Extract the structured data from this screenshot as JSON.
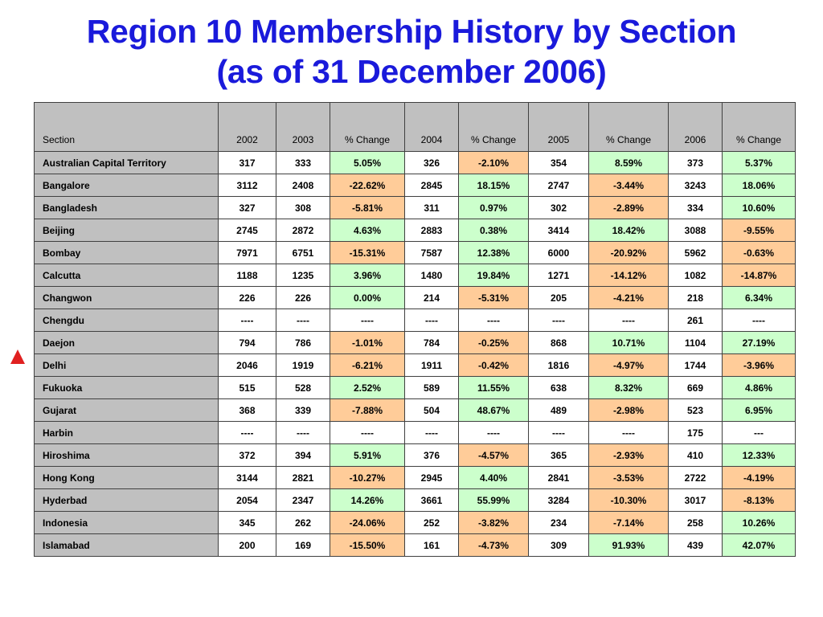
{
  "title": {
    "line1": "Region 10 Membership History by Section",
    "line2": "(as of 31 December 2006)"
  },
  "marker_icon": "triangle-up-icon",
  "colors": {
    "title": "#1a1adb",
    "header_bg": "#c0c0c0",
    "increase_bg": "#ccffcc",
    "decrease_bg": "#ffcc99",
    "marker": "#e02020"
  },
  "table": {
    "headers": [
      "Section",
      "2002",
      "2003",
      "% Change",
      "2004",
      "% Change",
      "2005",
      "% Change",
      "2006",
      "% Change"
    ],
    "rows": [
      [
        "Australian Capital Territory",
        "317",
        "333",
        "5.05%",
        "326",
        "-2.10%",
        "354",
        "8.59%",
        "373",
        "5.37%"
      ],
      [
        "Bangalore",
        "3112",
        "2408",
        "-22.62%",
        "2845",
        "18.15%",
        "2747",
        "-3.44%",
        "3243",
        "18.06%"
      ],
      [
        "Bangladesh",
        "327",
        "308",
        "-5.81%",
        "311",
        "0.97%",
        "302",
        "-2.89%",
        "334",
        "10.60%"
      ],
      [
        "Beijing",
        "2745",
        "2872",
        "4.63%",
        "2883",
        "0.38%",
        "3414",
        "18.42%",
        "3088",
        "-9.55%"
      ],
      [
        "Bombay",
        "7971",
        "6751",
        "-15.31%",
        "7587",
        "12.38%",
        "6000",
        "-20.92%",
        "5962",
        "-0.63%"
      ],
      [
        "Calcutta",
        "1188",
        "1235",
        "3.96%",
        "1480",
        "19.84%",
        "1271",
        "-14.12%",
        "1082",
        "-14.87%"
      ],
      [
        "Changwon",
        "226",
        "226",
        "0.00%",
        "214",
        "-5.31%",
        "205",
        "-4.21%",
        "218",
        "6.34%"
      ],
      [
        "Chengdu",
        "----",
        "----",
        "----",
        "----",
        "----",
        "----",
        "----",
        "261",
        "----"
      ],
      [
        "Daejon",
        "794",
        "786",
        "-1.01%",
        "784",
        "-0.25%",
        "868",
        "10.71%",
        "1104",
        "27.19%"
      ],
      [
        "Delhi",
        "2046",
        "1919",
        "-6.21%",
        "1911",
        "-0.42%",
        "1816",
        "-4.97%",
        "1744",
        "-3.96%"
      ],
      [
        "Fukuoka",
        "515",
        "528",
        "2.52%",
        "589",
        "11.55%",
        "638",
        "8.32%",
        "669",
        "4.86%"
      ],
      [
        "Gujarat",
        "368",
        "339",
        "-7.88%",
        "504",
        "48.67%",
        "489",
        "-2.98%",
        "523",
        "6.95%"
      ],
      [
        "Harbin",
        "----",
        "----",
        "----",
        "----",
        "----",
        "----",
        "----",
        "175",
        "---"
      ],
      [
        "Hiroshima",
        "372",
        "394",
        "5.91%",
        "376",
        "-4.57%",
        "365",
        "-2.93%",
        "410",
        "12.33%"
      ],
      [
        "Hong Kong",
        "3144",
        "2821",
        "-10.27%",
        "2945",
        "4.40%",
        "2841",
        "-3.53%",
        "2722",
        "-4.19%"
      ],
      [
        "Hyderbad",
        "2054",
        "2347",
        "14.26%",
        "3661",
        "55.99%",
        "3284",
        "-10.30%",
        "3017",
        "-8.13%"
      ],
      [
        "Indonesia",
        "345",
        "262",
        "-24.06%",
        "252",
        "-3.82%",
        "234",
        "-7.14%",
        "258",
        "10.26%"
      ],
      [
        "Islamabad",
        "200",
        "169",
        "-15.50%",
        "161",
        "-4.73%",
        "309",
        "91.93%",
        "439",
        "42.07%"
      ]
    ]
  }
}
